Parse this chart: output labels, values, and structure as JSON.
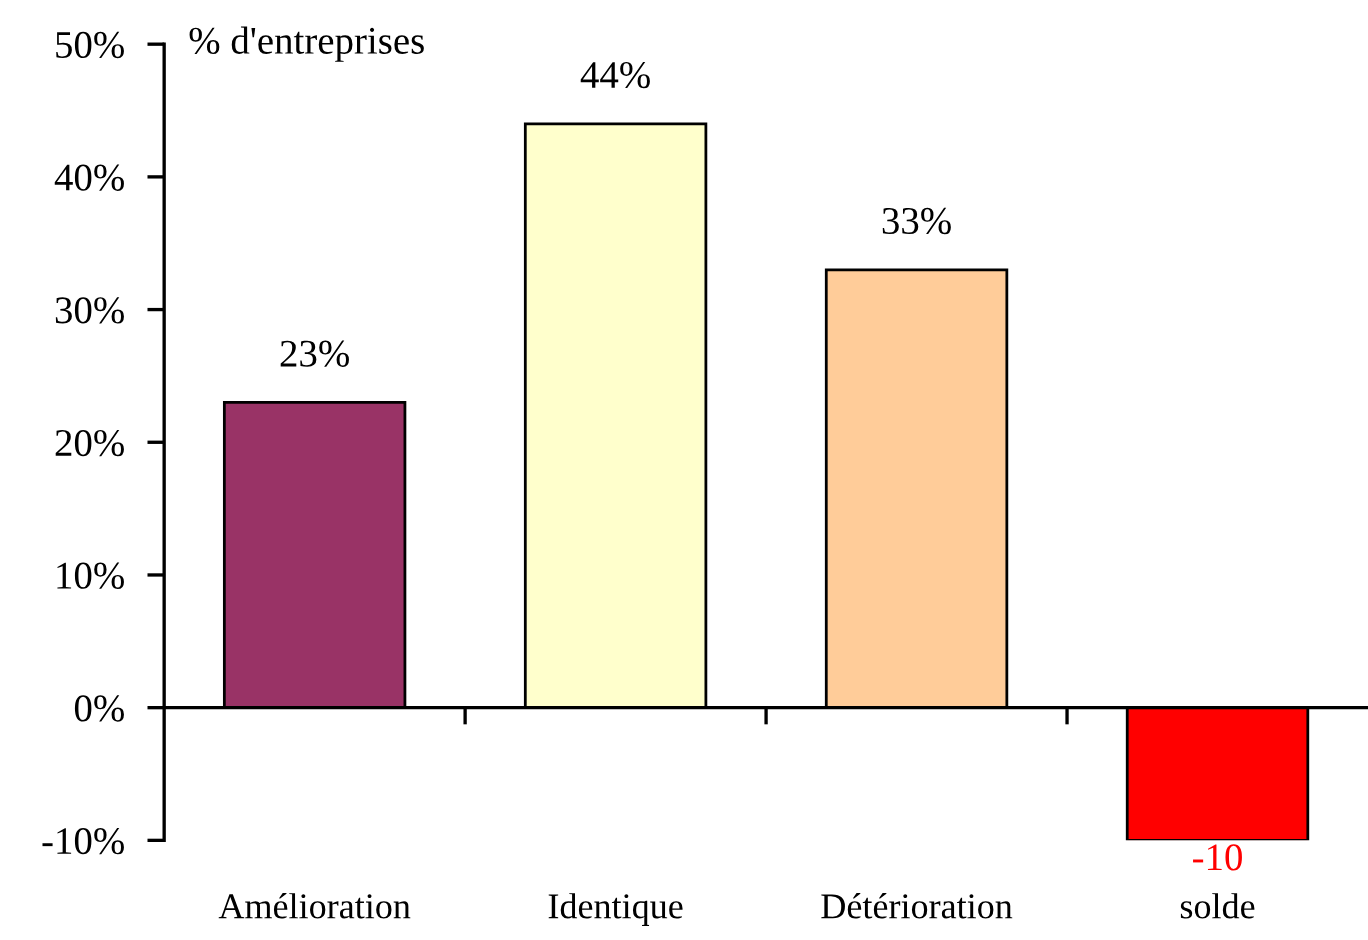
{
  "chart_data": {
    "type": "bar",
    "ylabel": "% d'entreprises",
    "categories": [
      "Amélioration",
      "Identique",
      "Détérioration",
      "solde"
    ],
    "values": [
      23,
      44,
      33,
      -10
    ],
    "colors": [
      "#993366",
      "#ffffcc",
      "#ffcc99",
      "#ff0000"
    ],
    "value_labels": [
      "23%",
      "44%",
      "33%",
      "-10"
    ],
    "ylim": [
      -10,
      50
    ],
    "yticks": [
      {
        "value": -10,
        "label": "-10%"
      },
      {
        "value": 0,
        "label": "0%"
      },
      {
        "value": 10,
        "label": "10%"
      },
      {
        "value": 20,
        "label": "20%"
      },
      {
        "value": 30,
        "label": "30%"
      },
      {
        "value": 40,
        "label": "40%"
      },
      {
        "value": 50,
        "label": "50%"
      }
    ],
    "legend": false
  }
}
